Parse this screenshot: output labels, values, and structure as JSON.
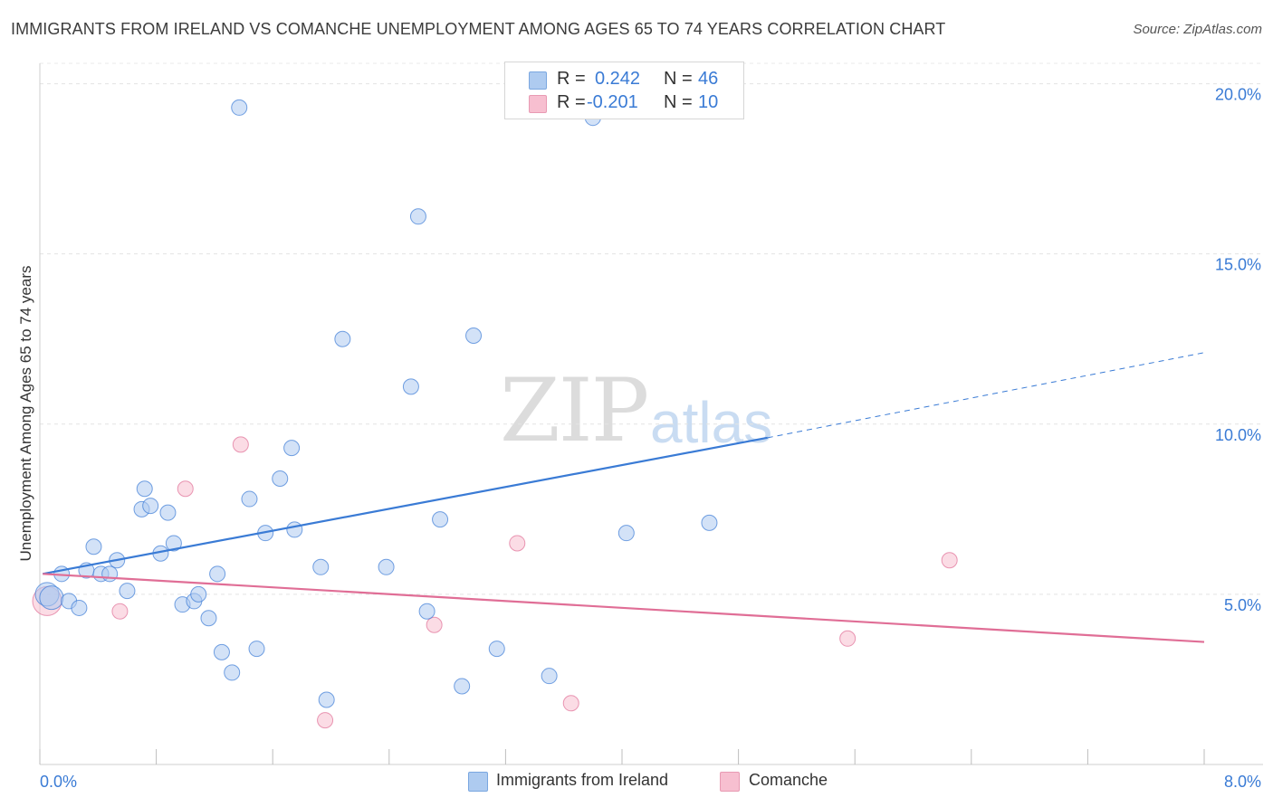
{
  "title": "IMMIGRANTS FROM IRELAND VS COMANCHE UNEMPLOYMENT AMONG AGES 65 TO 74 YEARS CORRELATION CHART",
  "source": "Source: ZipAtlas.com",
  "watermark": {
    "zip": "ZIP",
    "atlas": "atlas"
  },
  "legend": {
    "rows": [
      {
        "r_label": "R =",
        "r_value": "0.242",
        "n_label": "N =",
        "n_value": "46",
        "color": "#aecbf0"
      },
      {
        "r_label": "R =",
        "r_value": "-0.201",
        "n_label": "N =",
        "n_value": "10",
        "color": "#f7bfd0"
      }
    ]
  },
  "bottom_legend": {
    "series1": "Immigrants from Ireland",
    "series2": "Comanche"
  },
  "chart_data": {
    "type": "scatter",
    "title": "IMMIGRANTS FROM IRELAND VS COMANCHE UNEMPLOYMENT AMONG AGES 65 TO 74 YEARS CORRELATION CHART",
    "xlabel": "",
    "ylabel": "Unemployment Among Ages 65 to 74 years",
    "xlim": [
      0,
      8
    ],
    "ylim": [
      0,
      20.6
    ],
    "x_ticks": [
      "0.0%",
      "8.0%"
    ],
    "y_ticks": [
      {
        "v": 5,
        "label": "5.0%"
      },
      {
        "v": 10,
        "label": "10.0%"
      },
      {
        "v": 15,
        "label": "15.0%"
      },
      {
        "v": 20,
        "label": "20.0%"
      }
    ],
    "grid": true,
    "colors": {
      "ireland": "#3a7bd5",
      "ireland_fill": "#aecbf0",
      "comanche": "#e06e96",
      "comanche_fill": "#f7bfd0"
    },
    "series": [
      {
        "name": "Immigrants from Ireland",
        "r": 0.242,
        "n": 46,
        "trend": {
          "x0": 0.02,
          "y0": 5.6,
          "x1": 5.0,
          "y1": 9.6,
          "x_dash_end": 8.0,
          "y_dash_end": 12.1
        },
        "points": [
          [
            0.05,
            5.0,
            "big"
          ],
          [
            0.08,
            4.9,
            "big"
          ],
          [
            0.15,
            5.6
          ],
          [
            0.2,
            4.8
          ],
          [
            0.27,
            4.6
          ],
          [
            0.32,
            5.7
          ],
          [
            0.37,
            6.4
          ],
          [
            0.42,
            5.6
          ],
          [
            0.48,
            5.6
          ],
          [
            0.53,
            6.0
          ],
          [
            0.6,
            5.1
          ],
          [
            0.7,
            7.5
          ],
          [
            0.72,
            8.1
          ],
          [
            0.76,
            7.6
          ],
          [
            0.83,
            6.2
          ],
          [
            0.88,
            7.4
          ],
          [
            0.92,
            6.5
          ],
          [
            0.98,
            4.7
          ],
          [
            1.06,
            4.8
          ],
          [
            1.09,
            5.0
          ],
          [
            1.16,
            4.3
          ],
          [
            1.22,
            5.6
          ],
          [
            1.25,
            3.3
          ],
          [
            1.32,
            2.7
          ],
          [
            1.37,
            19.3
          ],
          [
            1.44,
            7.8
          ],
          [
            1.49,
            3.4
          ],
          [
            1.55,
            6.8
          ],
          [
            1.65,
            8.4
          ],
          [
            1.73,
            9.3
          ],
          [
            1.75,
            6.9
          ],
          [
            1.93,
            5.8
          ],
          [
            1.97,
            1.9
          ],
          [
            2.08,
            12.5
          ],
          [
            2.38,
            5.8
          ],
          [
            2.55,
            11.1
          ],
          [
            2.6,
            16.1
          ],
          [
            2.66,
            4.5
          ],
          [
            2.75,
            7.2
          ],
          [
            2.9,
            2.3
          ],
          [
            2.98,
            12.6
          ],
          [
            3.14,
            3.4
          ],
          [
            3.5,
            2.6
          ],
          [
            3.8,
            19.0
          ],
          [
            4.03,
            6.8
          ],
          [
            4.6,
            7.1
          ]
        ]
      },
      {
        "name": "Comanche",
        "r": -0.201,
        "n": 10,
        "trend": {
          "x0": 0.02,
          "y0": 5.6,
          "x1": 8.0,
          "y1": 3.6
        },
        "points": [
          [
            0.05,
            4.8,
            "big"
          ],
          [
            0.55,
            4.5
          ],
          [
            1.0,
            8.1
          ],
          [
            1.38,
            9.4
          ],
          [
            1.96,
            1.3
          ],
          [
            2.71,
            4.1
          ],
          [
            3.28,
            6.5
          ],
          [
            3.65,
            1.8
          ],
          [
            5.55,
            3.7
          ],
          [
            6.25,
            6.0
          ]
        ]
      }
    ]
  }
}
